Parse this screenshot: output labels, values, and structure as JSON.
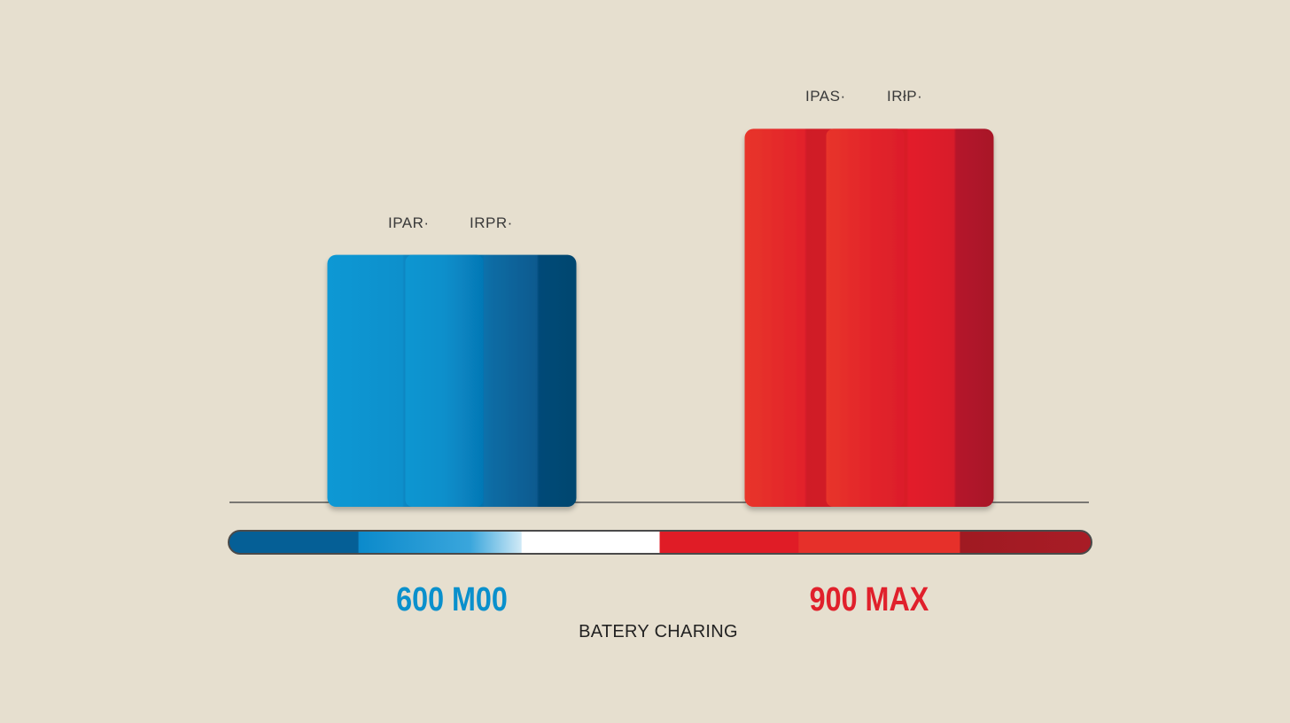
{
  "chart_data": {
    "type": "bar",
    "categories": [
      "600 M00",
      "900 MAX"
    ],
    "values": [
      600,
      900
    ],
    "ylim": [
      0,
      1000
    ],
    "bar_labels": [
      [
        "IPAR·",
        "IRPR·"
      ],
      [
        "IPAS·",
        "IRłP·"
      ]
    ],
    "caption": "BATERY CHARING",
    "colors": [
      "#0a90cc",
      "#e0202b"
    ]
  }
}
